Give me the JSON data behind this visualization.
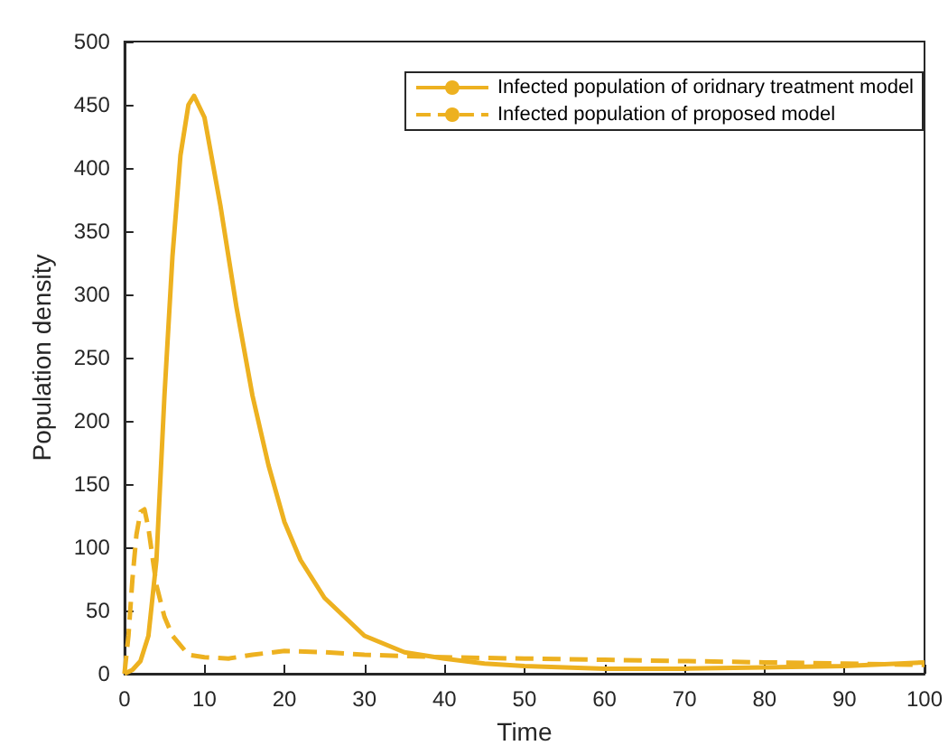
{
  "chart_data": {
    "type": "line",
    "xlabel": "Time",
    "ylabel": "Population density",
    "xlim": [
      0,
      100
    ],
    "ylim": [
      0,
      500
    ],
    "xticks": [
      0,
      10,
      20,
      30,
      40,
      50,
      60,
      70,
      80,
      90,
      100
    ],
    "yticks": [
      0,
      50,
      100,
      150,
      200,
      250,
      300,
      350,
      400,
      450,
      500
    ],
    "grid": false,
    "legend": "top right",
    "marker": "none",
    "series": [
      {
        "name": "Infected population of oridnary treatment model",
        "color": "#edb120",
        "line_style": "solid",
        "x": [
          0,
          1,
          2,
          3,
          4,
          5,
          6,
          7,
          8,
          8.7,
          10,
          12,
          14,
          16,
          18,
          20,
          22,
          25,
          30,
          35,
          40,
          45,
          50,
          60,
          70,
          80,
          90,
          100
        ],
        "values": [
          0,
          3,
          10,
          30,
          90,
          220,
          330,
          410,
          450,
          457,
          440,
          370,
          290,
          220,
          165,
          120,
          90,
          60,
          30,
          17,
          12,
          8,
          6,
          4,
          4,
          5,
          6,
          9
        ]
      },
      {
        "name": "Infected population of proposed model",
        "color": "#edb120",
        "line_style": "dashed",
        "x": [
          0,
          0.5,
          1,
          1.5,
          2,
          2.5,
          3,
          4,
          5,
          6,
          8,
          10,
          13,
          16,
          20,
          25,
          30,
          40,
          50,
          60,
          70,
          80,
          90,
          100
        ],
        "values": [
          0,
          30,
          75,
          110,
          128,
          130,
          115,
          70,
          45,
          30,
          15,
          13,
          12,
          15,
          18,
          17,
          15,
          13,
          12,
          11,
          10,
          9,
          8,
          7
        ]
      }
    ]
  }
}
